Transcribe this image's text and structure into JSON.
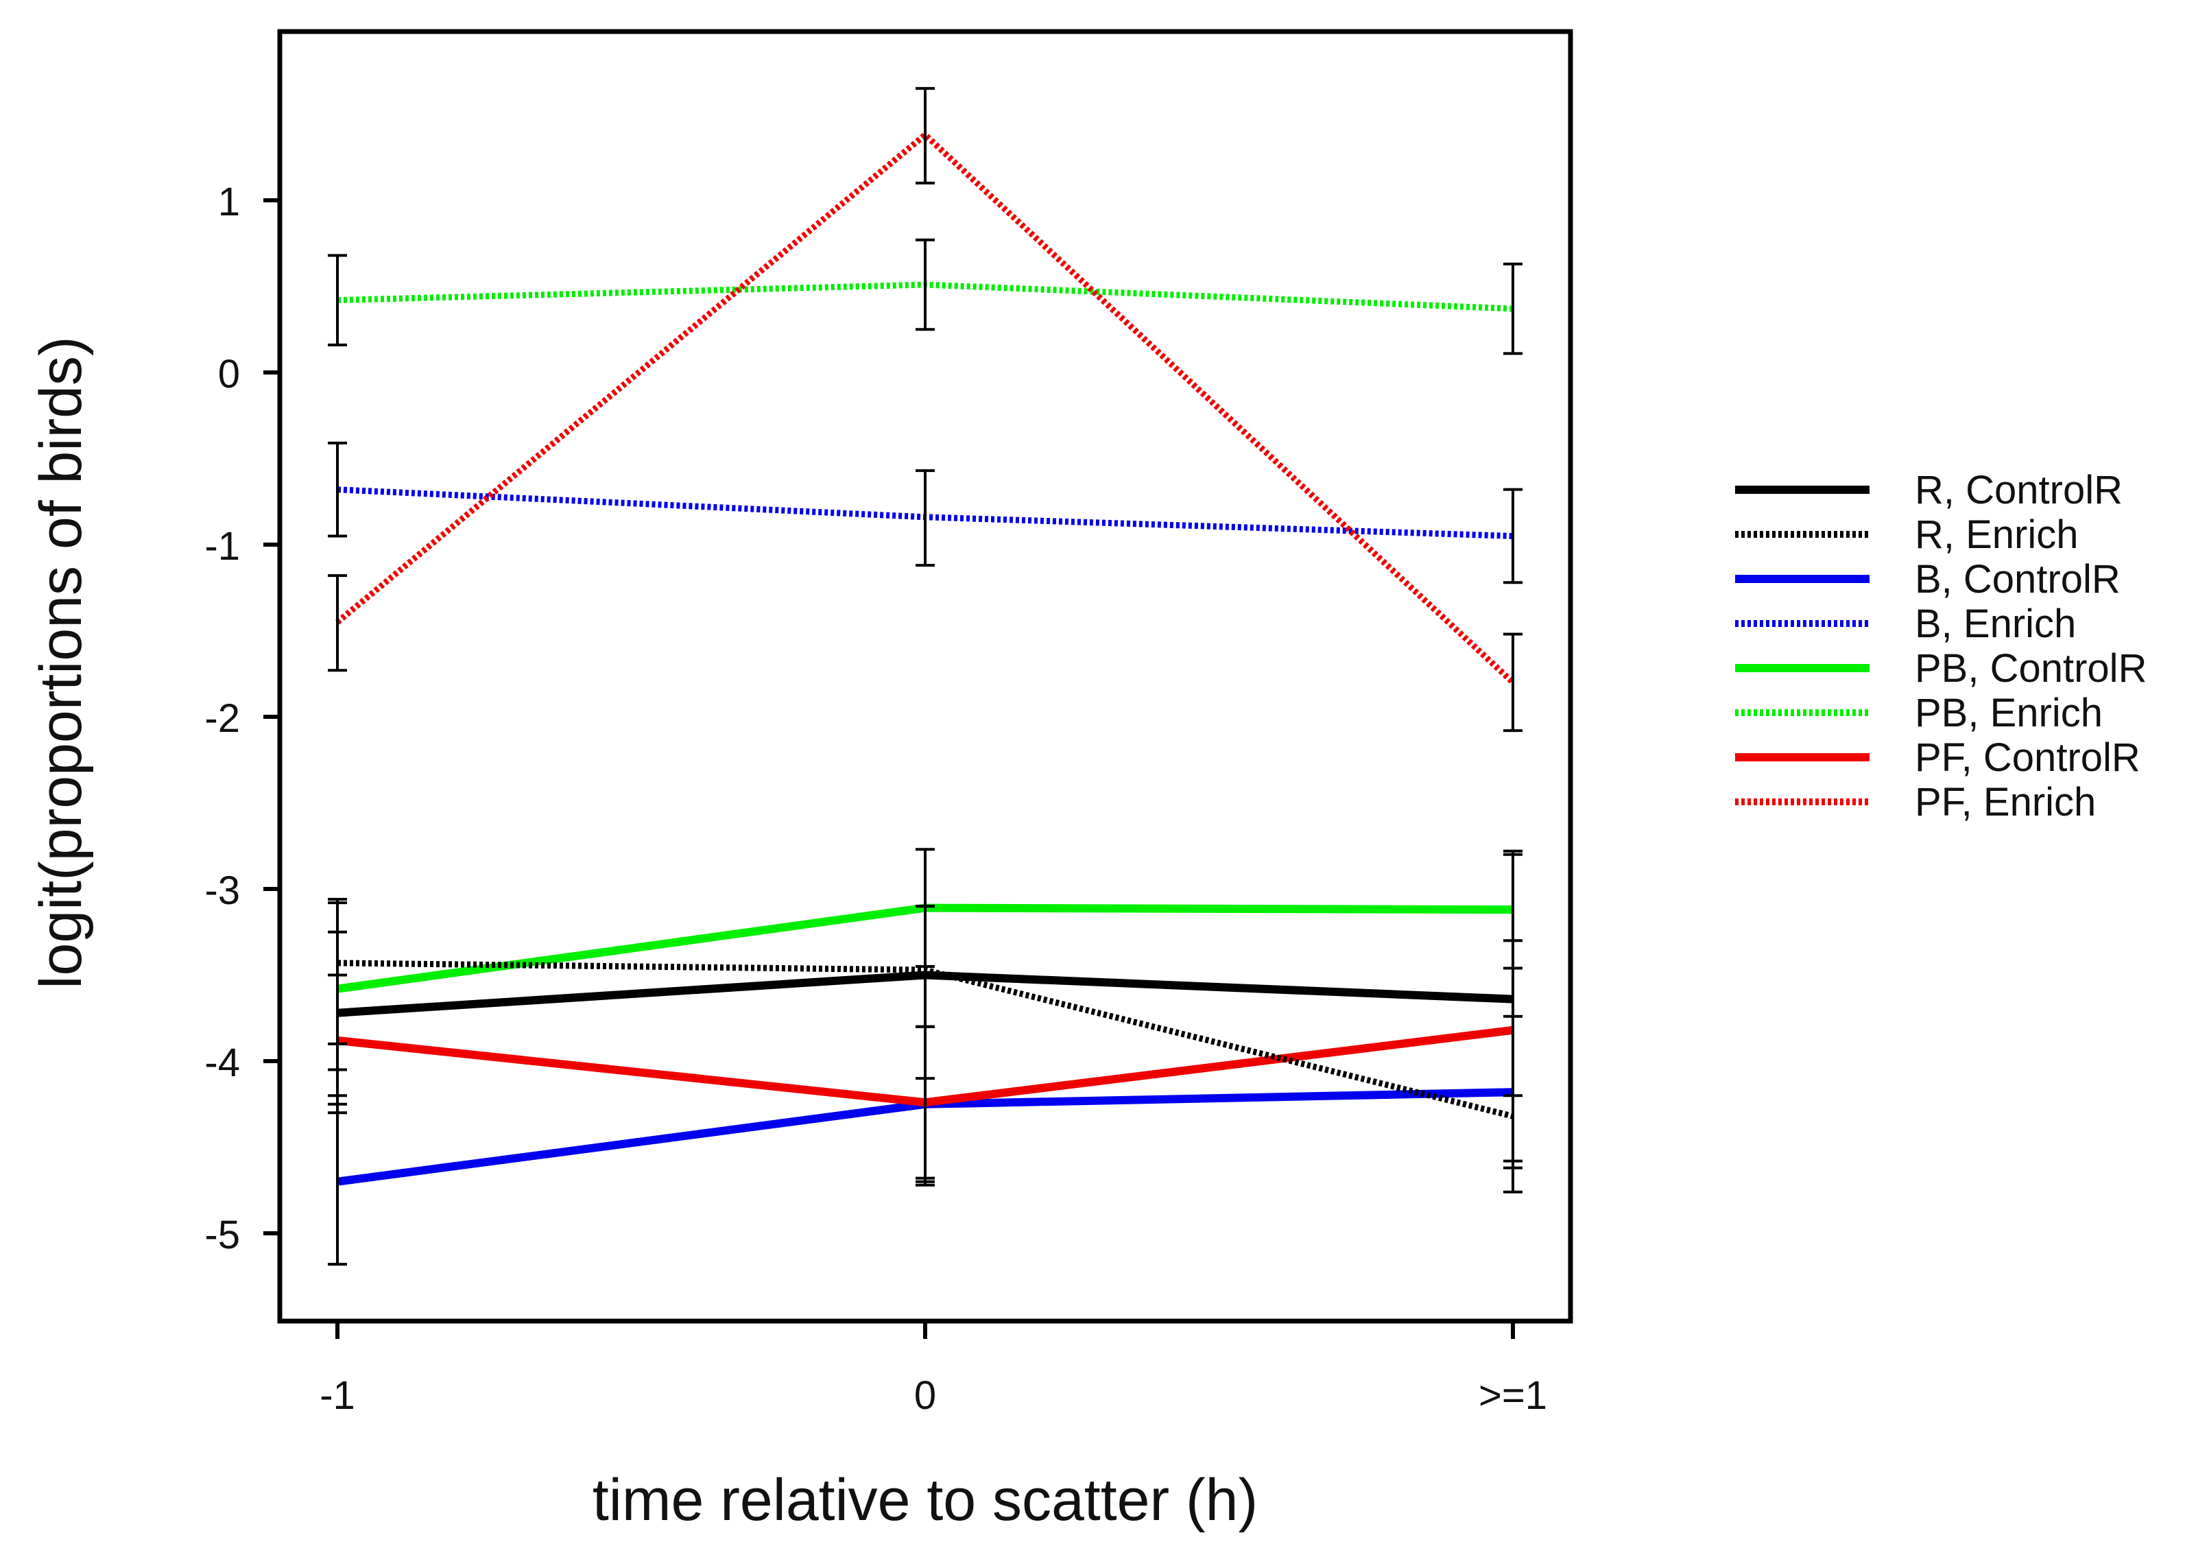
{
  "chart_data": {
    "type": "line",
    "title": "",
    "xlabel": "time relative to scatter (h)",
    "ylabel": "logit(proportions of birds)",
    "categories": [
      "-1",
      "0",
      ">=1"
    ],
    "ylim": [
      -5.5,
      2.0
    ],
    "yticks": [
      1,
      0,
      -1,
      -2,
      -3,
      -4,
      -5
    ],
    "ytick_labels": [
      "1",
      "0",
      "-1",
      "-2",
      "-3",
      "-4",
      "-5"
    ],
    "grid": false,
    "legend_position": "right",
    "series": [
      {
        "name": "R, ControlR",
        "color": "#000000",
        "dash": "solid",
        "values": [
          -3.72,
          -3.5,
          -3.64
        ],
        "err_low": [
          -4.3,
          -4.72,
          -4.76
        ],
        "err_high": [
          -3.06,
          -3.1,
          -2.8
        ]
      },
      {
        "name": "R, Enrich",
        "color": "#000000",
        "dash": "dotted",
        "values": [
          -3.43,
          -3.47,
          -4.32
        ],
        "err_low": [
          -4.05,
          -4.1,
          -4.62
        ],
        "err_high": [
          -3.08,
          -3.1,
          -3.3
        ]
      },
      {
        "name": "B, ControlR",
        "color": "#0000ee",
        "dash": "solid",
        "values": [
          -4.7,
          -4.25,
          -4.18
        ],
        "err_low": [
          -5.18,
          -4.7,
          -4.58
        ],
        "err_high": [
          -4.2,
          -3.8,
          -3.74
        ]
      },
      {
        "name": "B, Enrich",
        "color": "#0000ee",
        "dash": "dotted",
        "values": [
          -0.68,
          -0.84,
          -0.95
        ],
        "err_low": [
          -0.95,
          -1.12,
          -1.22
        ],
        "err_high": [
          -0.41,
          -0.57,
          -0.68
        ]
      },
      {
        "name": "PB, ControlR",
        "color": "#00ee00",
        "dash": "solid",
        "values": [
          -3.58,
          -3.11,
          -3.12
        ],
        "err_low": [
          -3.9,
          -3.45,
          -3.46
        ],
        "err_high": [
          -3.25,
          -2.77,
          -2.78
        ]
      },
      {
        "name": "PB, Enrich",
        "color": "#00ee00",
        "dash": "dotted",
        "values": [
          0.42,
          0.51,
          0.37
        ],
        "err_low": [
          0.16,
          0.25,
          0.11
        ],
        "err_high": [
          0.68,
          0.77,
          0.63
        ]
      },
      {
        "name": "PF, ControlR",
        "color": "#ee0000",
        "dash": "solid",
        "values": [
          -3.88,
          -4.24,
          -3.82
        ],
        "err_low": [
          -4.25,
          -4.68,
          -4.2
        ],
        "err_high": [
          -3.5,
          -3.8,
          -3.46
        ]
      },
      {
        "name": "PF, Enrich",
        "color": "#ee0000",
        "dash": "dotted",
        "values": [
          -1.45,
          1.38,
          -1.8
        ],
        "err_low": [
          -1.73,
          1.1,
          -2.08
        ],
        "err_high": [
          -1.18,
          1.65,
          -1.52
        ]
      }
    ]
  }
}
